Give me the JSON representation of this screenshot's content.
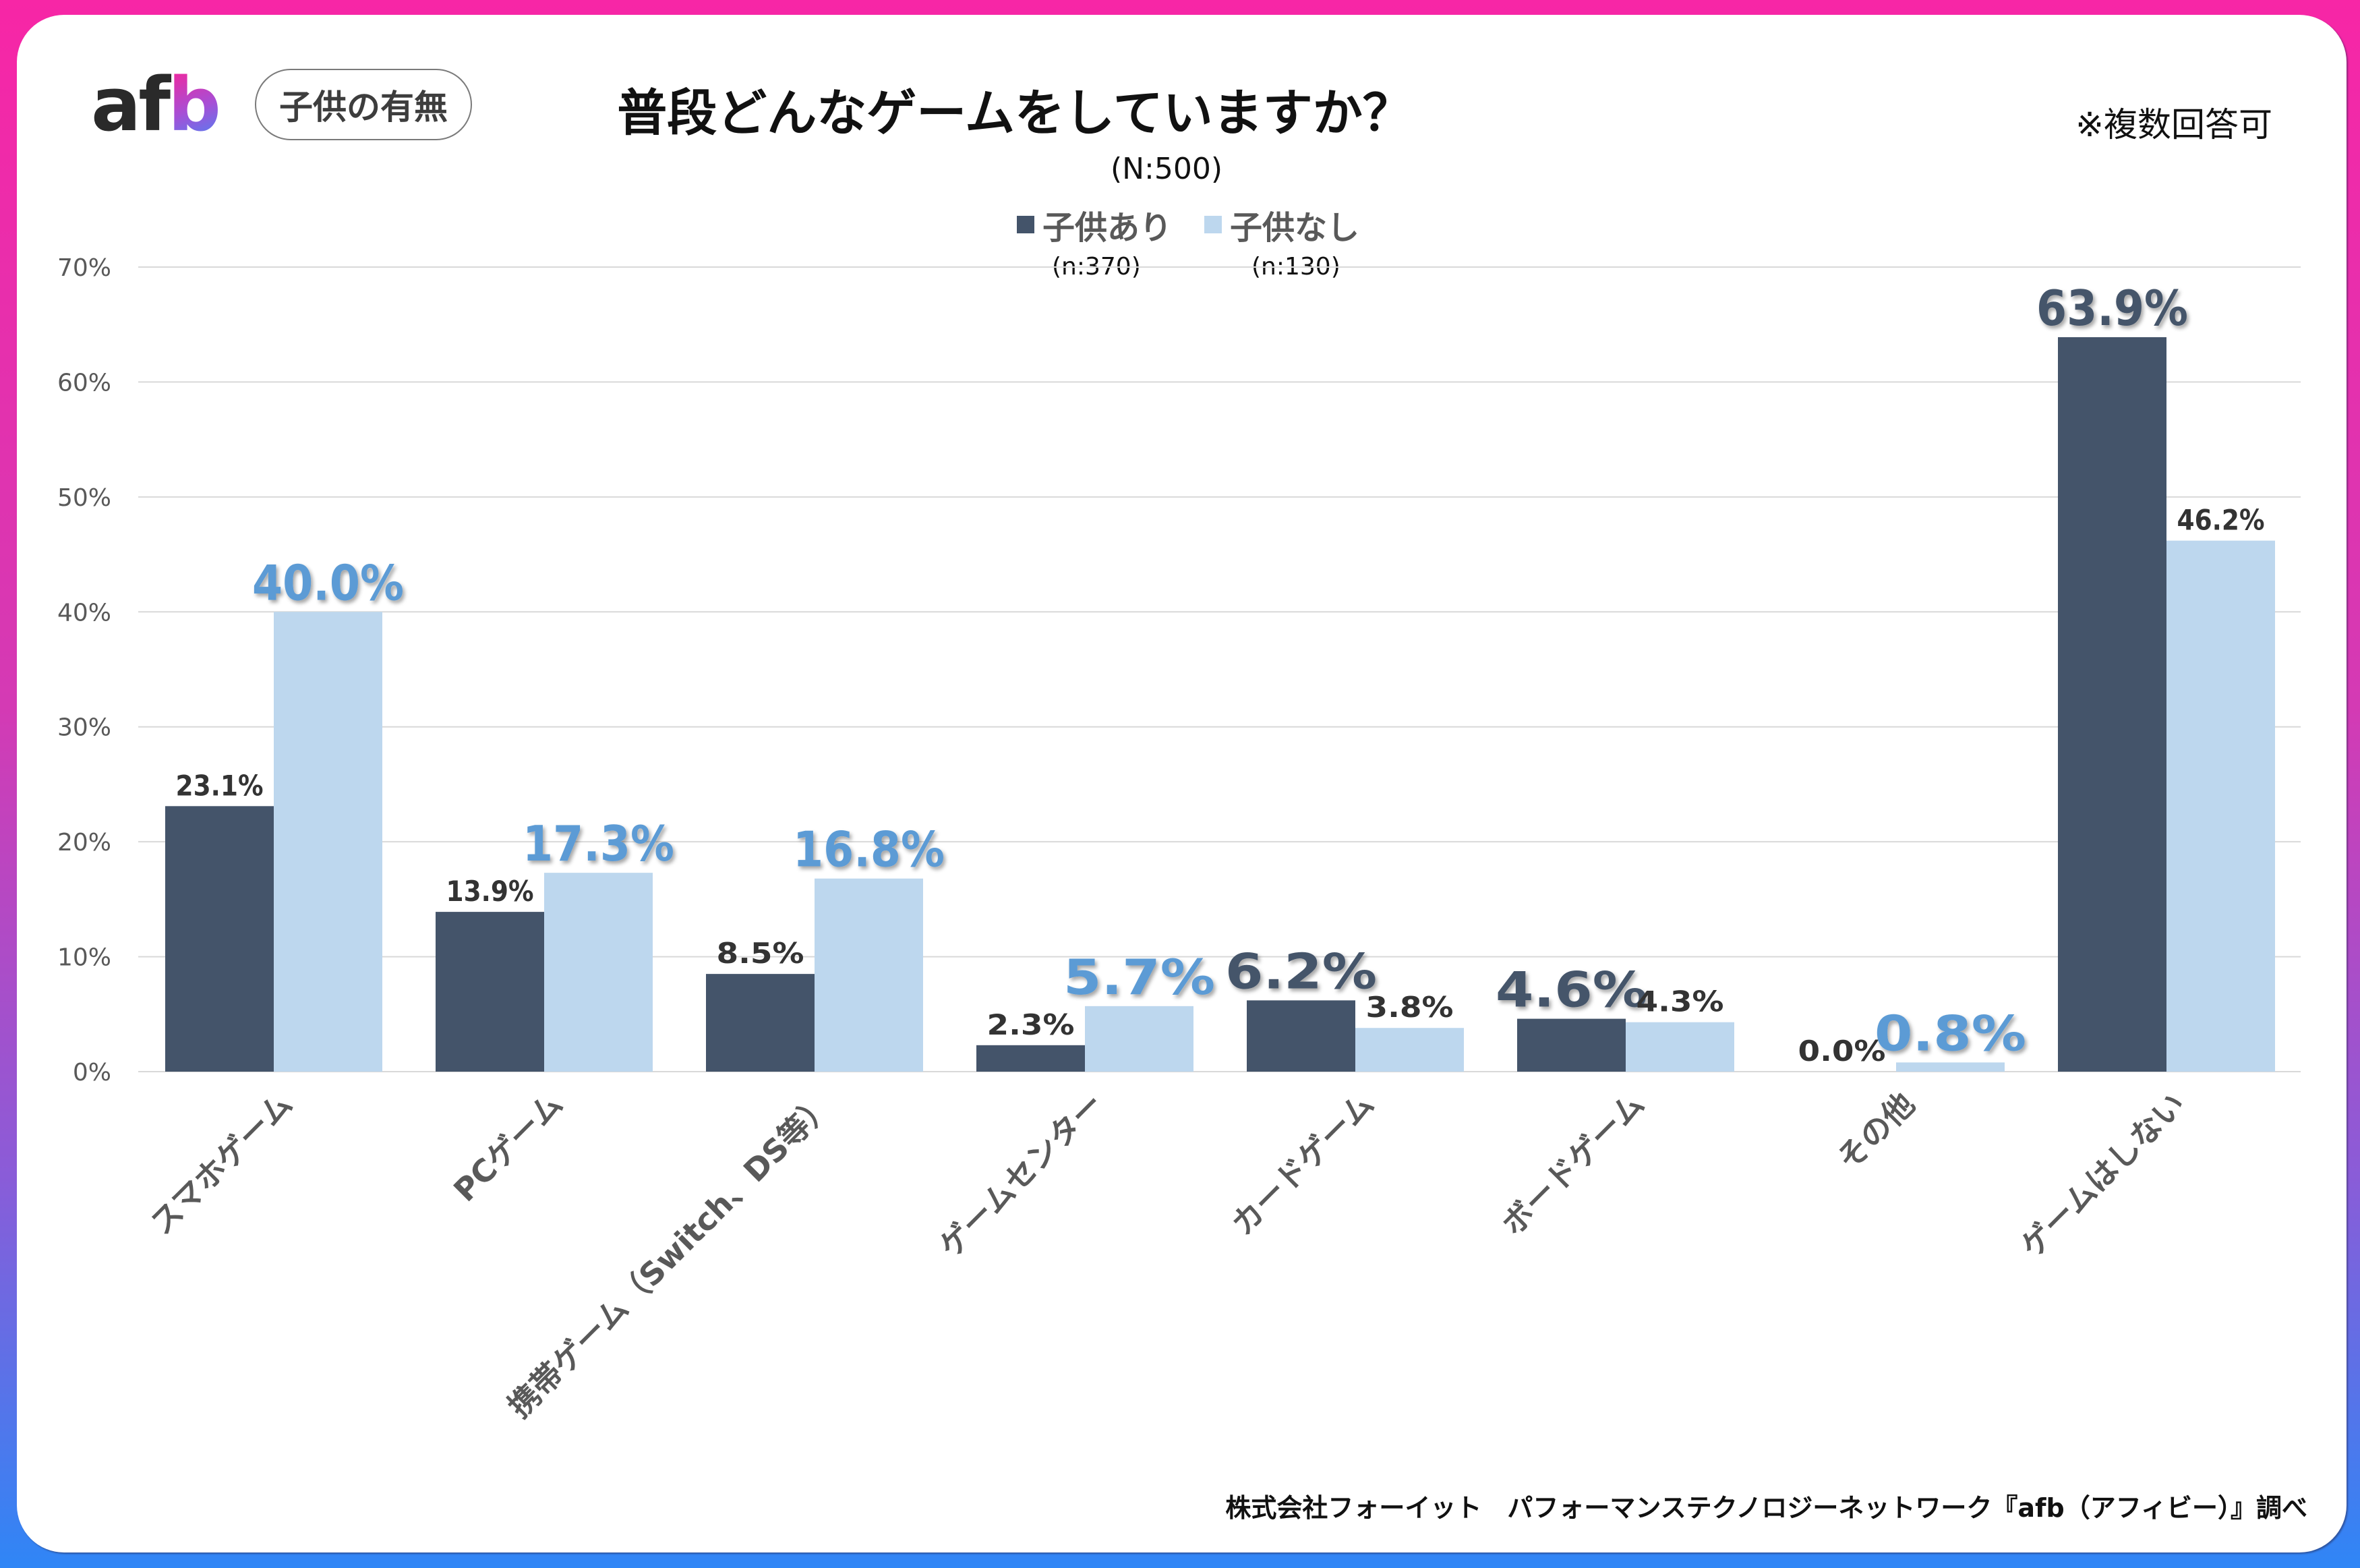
{
  "header": {
    "logo_text_af": "af",
    "logo_text_b": "b",
    "segment_pill": "子供の有無",
    "title": "普段どんなゲームをしていますか？",
    "sample_total": "(N:500)",
    "note": "※複数回答可"
  },
  "legend": [
    {
      "label": "子供あり",
      "n": "(n:370)",
      "color": "#44546a"
    },
    {
      "label": "子供なし",
      "n": "(n:130)",
      "color": "#bdd7ee"
    }
  ],
  "footer": {
    "source": "株式会社フォーイット　パフォーマンステクノロジーネットワーク『afb（アフィビー）』調べ"
  },
  "colors": {
    "frame_top": "#f726a6",
    "frame_bottom": "#2f86f6",
    "series_dark": "#44546a",
    "series_light": "#bdd7ee",
    "highlight_light_label": "#5b9bd5",
    "highlight_dark_label": "#44546a",
    "normal_label": "#333333",
    "axis_text": "#595959",
    "gridline": "#d9d9d9"
  },
  "chart_data": {
    "type": "bar",
    "title": "普段どんなゲームをしていますか？",
    "subtitle": "(N:500)",
    "xlabel": "",
    "ylabel": "",
    "ylim": [
      0,
      70
    ],
    "yticks": [
      "0%",
      "10%",
      "20%",
      "30%",
      "40%",
      "50%",
      "60%",
      "70%"
    ],
    "grid": true,
    "legend_position": "top-center",
    "categories": [
      "スマホゲーム",
      "PCゲーム",
      "携帯ゲーム（Switch、DS等）",
      "ゲームセンター",
      "カードゲーム",
      "ボードゲーム",
      "その他",
      "ゲームはしない"
    ],
    "series": [
      {
        "name": "子供あり",
        "n": 370,
        "values": [
          23.1,
          13.9,
          8.5,
          2.3,
          6.2,
          4.6,
          0.0,
          63.9
        ],
        "labels": [
          "23.1%",
          "13.9%",
          "8.5%",
          "2.3%",
          "6.2%",
          "4.6%",
          "0.0%",
          "63.9%"
        ],
        "highlighted": [
          false,
          false,
          false,
          false,
          true,
          true,
          false,
          true
        ]
      },
      {
        "name": "子供なし",
        "n": 130,
        "values": [
          40.0,
          17.3,
          16.8,
          5.7,
          3.8,
          4.3,
          0.8,
          46.2
        ],
        "labels": [
          "40.0%",
          "17.3%",
          "16.8%",
          "5.7%",
          "3.8%",
          "4.3%",
          "0.8%",
          "46.2%"
        ],
        "highlighted": [
          true,
          true,
          true,
          true,
          false,
          false,
          true,
          false
        ]
      }
    ]
  }
}
